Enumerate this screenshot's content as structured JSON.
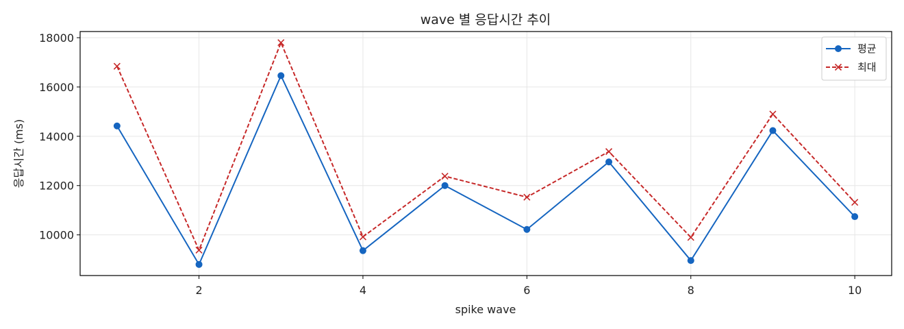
{
  "chart_data": {
    "type": "line",
    "title": "wave 별 응답시간 추이",
    "xlabel": "spike wave",
    "ylabel": "응답시간 (ms)",
    "x": [
      1,
      2,
      3,
      4,
      5,
      6,
      7,
      8,
      9,
      10
    ],
    "xlim": [
      0.55,
      10.45
    ],
    "ylim": [
      8350,
      18250
    ],
    "xticks": [
      2,
      4,
      6,
      8,
      10
    ],
    "yticks": [
      10000,
      12000,
      14000,
      16000,
      18000
    ],
    "grid": true,
    "legend_position": "top-right",
    "series": [
      {
        "name": "평균",
        "values": [
          14420,
          8800,
          16460,
          9360,
          12000,
          10220,
          12960,
          8960,
          14230,
          10740
        ],
        "color": "#1565c0",
        "marker": "circle",
        "linestyle": "solid"
      },
      {
        "name": "최대",
        "values": [
          16840,
          9380,
          17800,
          9920,
          12380,
          11530,
          13380,
          9900,
          14900,
          11320
        ],
        "color": "#c62828",
        "marker": "x",
        "linestyle": "dashed"
      }
    ]
  }
}
